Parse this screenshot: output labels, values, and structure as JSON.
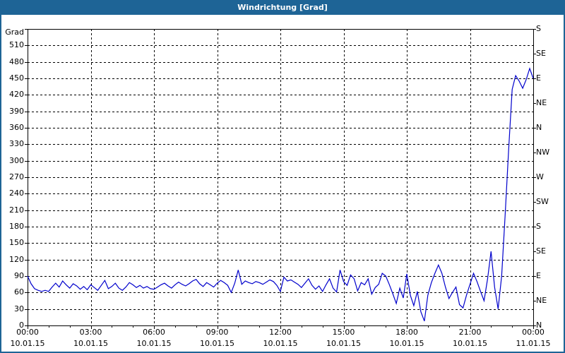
{
  "window": {
    "title": "Windrichtung [Grad]"
  },
  "colors": {
    "titlebar_bg": "#1e6496",
    "title_text": "#ffffff",
    "frame_border": "#1e6496",
    "plot_background": "#ffffff",
    "grid": "#000000",
    "line": "#0000cc"
  },
  "chart_data": {
    "type": "line",
    "title": "Windrichtung [Grad]",
    "y_axis_title": "Grad",
    "ylim": [
      0,
      540
    ],
    "y_tick_step": 30,
    "y_ticks_left": [
      0,
      30,
      60,
      90,
      120,
      150,
      180,
      210,
      240,
      270,
      300,
      330,
      360,
      390,
      420,
      450,
      480,
      510
    ],
    "y_ticks_right_step_deg": 45,
    "y_ticks_right": [
      "N",
      "NE",
      "E",
      "SE",
      "S",
      "SW",
      "W",
      "NW",
      "N",
      "NE",
      "E",
      "SE",
      "S"
    ],
    "x_range_hours": [
      0,
      24
    ],
    "x_major_tick_hours": 3,
    "x_minor_tick_hours": 1,
    "grid": "dashed",
    "legend": "none",
    "x_ticks": [
      {
        "time": "00:00",
        "date": "10.01.15"
      },
      {
        "time": "03:00",
        "date": "10.01.15"
      },
      {
        "time": "06:00",
        "date": "10.01.15"
      },
      {
        "time": "09:00",
        "date": "10.01.15"
      },
      {
        "time": "12:00",
        "date": "10.01.15"
      },
      {
        "time": "15:00",
        "date": "10.01.15"
      },
      {
        "time": "18:00",
        "date": "10.01.15"
      },
      {
        "time": "21:00",
        "date": "10.01.15"
      },
      {
        "time": "00:00",
        "date": "11.01.15"
      }
    ],
    "series": [
      {
        "name": "Windrichtung",
        "color": "#0000cc",
        "start": "10.01.15 00:00",
        "end": "11.01.15 00:00",
        "interval_minutes": 10,
        "unit": "Grad",
        "values": [
          90,
          76,
          67,
          64,
          62,
          64,
          62,
          70,
          77,
          70,
          81,
          74,
          68,
          76,
          72,
          66,
          71,
          65,
          74,
          69,
          64,
          73,
          82,
          67,
          71,
          77,
          68,
          64,
          70,
          78,
          74,
          69,
          73,
          68,
          71,
          67,
          66,
          70,
          74,
          77,
          72,
          68,
          74,
          79,
          75,
          72,
          76,
          81,
          84,
          76,
          71,
          78,
          74,
          70,
          77,
          82,
          78,
          73,
          60,
          77,
          101,
          75,
          81,
          78,
          76,
          80,
          78,
          75,
          79,
          83,
          80,
          73,
          62,
          88,
          81,
          83,
          79,
          75,
          69,
          77,
          85,
          73,
          66,
          72,
          62,
          74,
          85,
          68,
          61,
          101,
          80,
          73,
          92,
          85,
          63,
          78,
          74,
          85,
          57,
          69,
          75,
          95,
          90,
          75,
          58,
          40,
          68,
          50,
          94,
          55,
          36,
          62,
          25,
          8,
          55,
          78,
          95,
          110,
          95,
          70,
          49,
          60,
          70,
          38,
          32,
          55,
          75,
          95,
          80,
          62,
          45,
          85,
          135,
          70,
          30,
          90,
          200,
          320,
          430,
          455,
          445,
          432,
          448,
          468,
          450
        ]
      }
    ]
  }
}
